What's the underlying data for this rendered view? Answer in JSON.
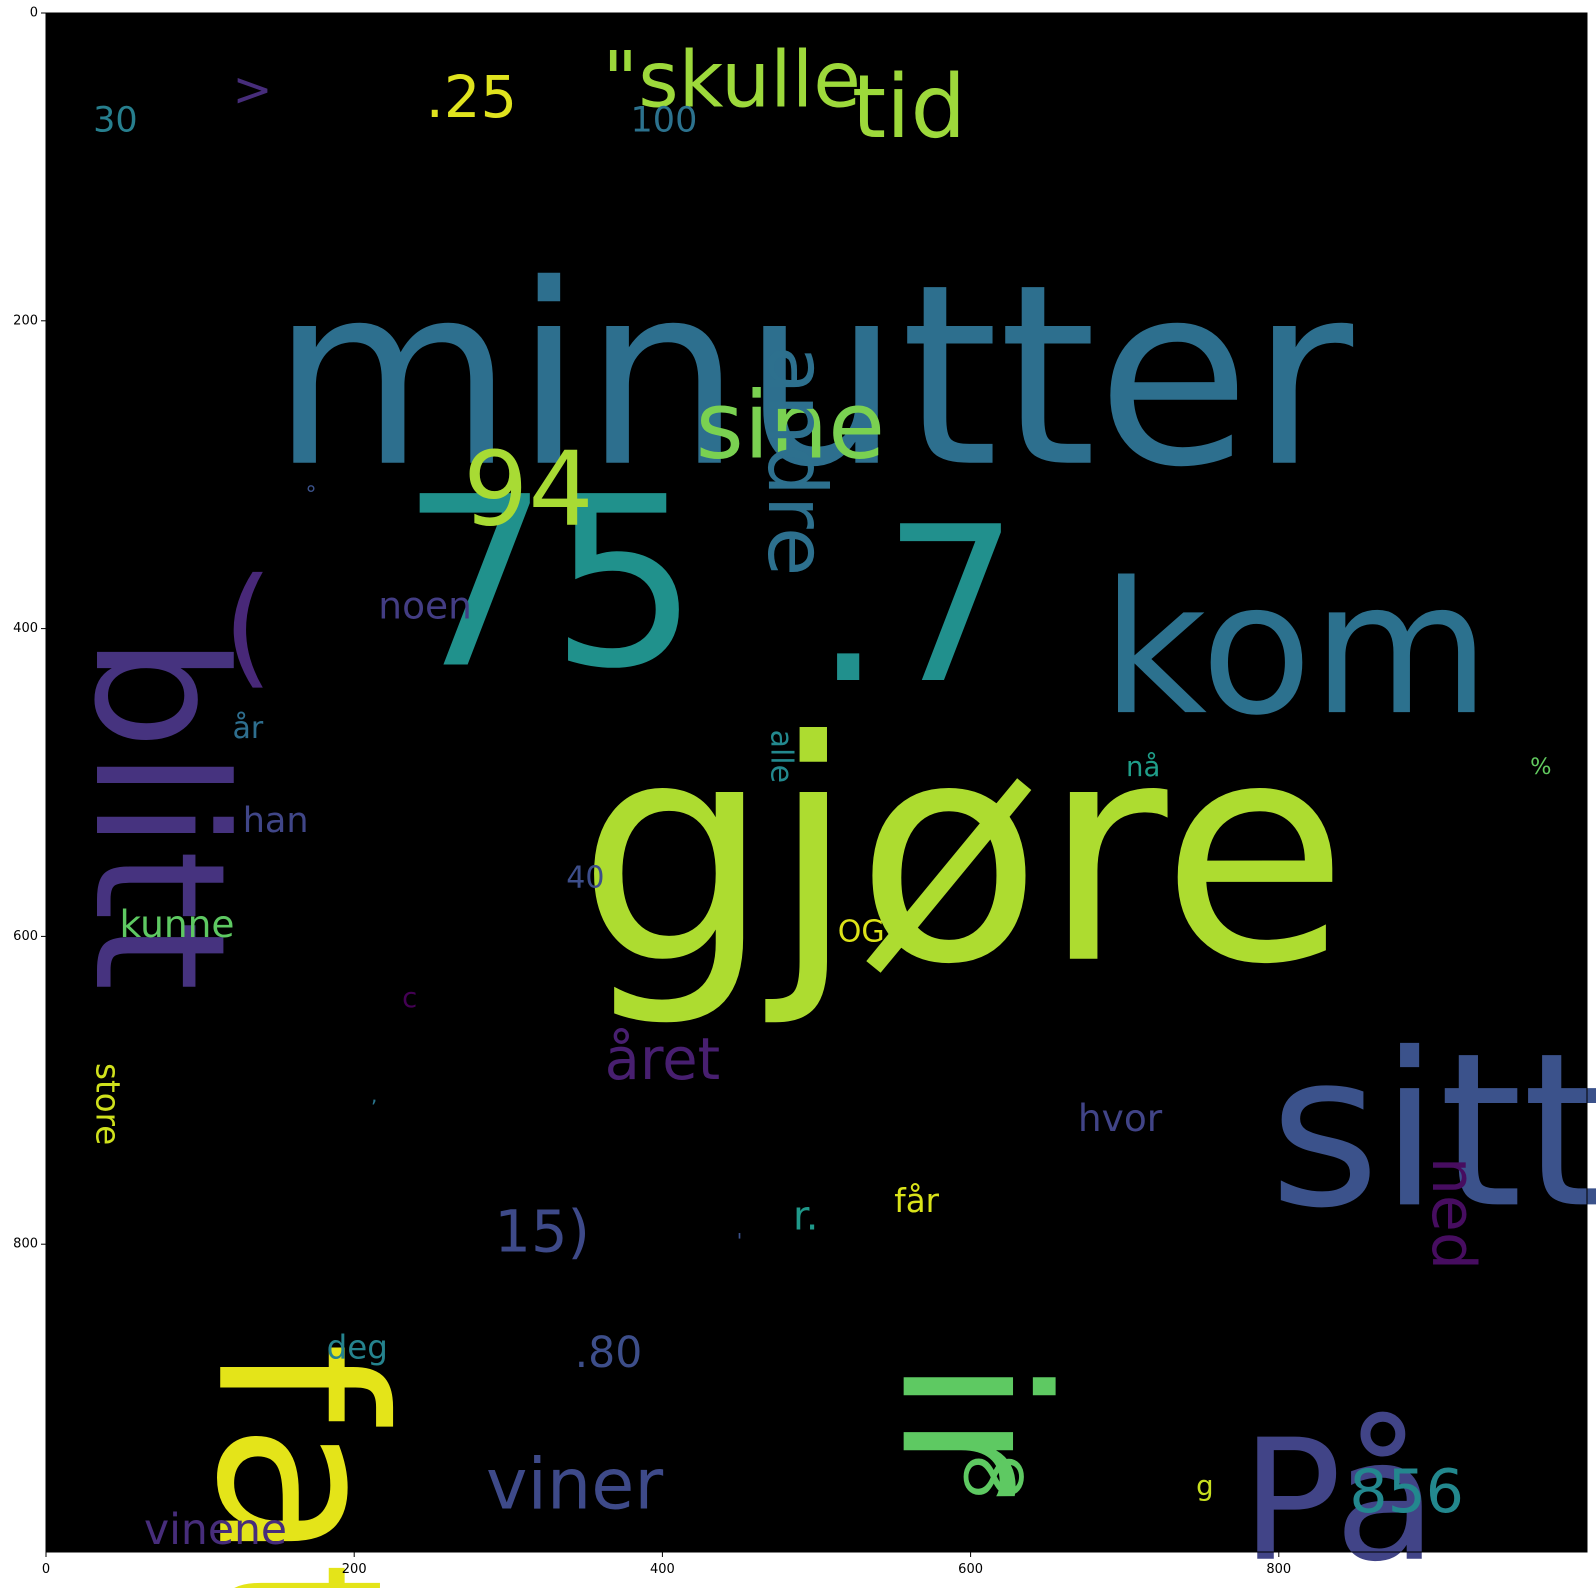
{
  "chart_data": {
    "type": "wordcloud",
    "background": "#000000",
    "xlim": [
      0,
      1000
    ],
    "ylim": [
      1000,
      0
    ],
    "xticks": [
      0,
      200,
      400,
      600,
      800
    ],
    "yticks": [
      0,
      200,
      400,
      600,
      800
    ],
    "words": [
      {
        "text": "minutter",
        "x": 497,
        "y": 236,
        "size": 1.0,
        "color": "#2d6f8e",
        "rotate": false
      },
      {
        "text": "gjøre",
        "x": 595,
        "y": 546,
        "size": 1.22,
        "color": "#addc30",
        "rotate": false
      },
      {
        "text": "75",
        "x": 327,
        "y": 371,
        "size": 0.94,
        "color": "#20918c",
        "rotate": false
      },
      {
        "text": ".7",
        "x": 565,
        "y": 385,
        "size": 0.86,
        "color": "#21908d",
        "rotate": false
      },
      {
        "text": "kom",
        "x": 811,
        "y": 414,
        "size": 0.73,
        "color": "#2c718e",
        "rotate": false
      },
      {
        "text": "sitt",
        "x": 903,
        "y": 727,
        "size": 0.85,
        "color": "#3b528b",
        "rotate": false
      },
      {
        "text": "fat",
        "x": 164,
        "y": 964,
        "size": 0.91,
        "color": "#e4e419",
        "rotate": true
      },
      {
        "text": "ir",
        "x": 601,
        "y": 919,
        "size": 0.8,
        "color": "#5ec962",
        "rotate": true
      },
      {
        "text": "På",
        "x": 839,
        "y": 967,
        "size": 0.67,
        "color": "#414487",
        "rotate": false
      },
      {
        "text": "blitt",
        "x": 73,
        "y": 520,
        "size": 0.72,
        "color": "#46337f",
        "rotate": true
      },
      {
        "text": "(",
        "x": 131,
        "y": 398,
        "size": 0.52,
        "color": "#482878",
        "rotate": false
      },
      {
        "text": "94",
        "x": 313,
        "y": 310,
        "size": 0.41,
        "color": "#a8db34",
        "rotate": false
      },
      {
        "text": "sine",
        "x": 483,
        "y": 268,
        "size": 0.37,
        "color": "#7ad151",
        "rotate": false
      },
      {
        "text": "andre",
        "x": 487,
        "y": 291,
        "size": 0.32,
        "color": "#2d708e",
        "rotate": true
      },
      {
        "text": "\"skulle",
        "x": 445,
        "y": 44,
        "size": 0.31,
        "color": "#9dd93b",
        "rotate": false
      },
      {
        "text": "tid",
        "x": 560,
        "y": 61,
        "size": 0.35,
        "color": "#9dd93b",
        "rotate": false
      },
      {
        "text": "",
        "x": 987,
        "y": 62,
        "size": 0.25,
        "color": "#440154",
        "rotate": false
      },
      {
        "text": ">",
        "x": 134,
        "y": 50,
        "size": 0.19,
        "color": "#472d7b",
        "rotate": false
      },
      {
        "text": ".25",
        "x": 276,
        "y": 55,
        "size": 0.23,
        "color": "#e0e31e",
        "rotate": false
      },
      {
        "text": "30",
        "x": 45,
        "y": 70,
        "size": 0.14,
        "color": "#277f8e",
        "rotate": false
      },
      {
        "text": "100",
        "x": 401,
        "y": 70,
        "size": 0.14,
        "color": "#2c728e",
        "rotate": false
      },
      {
        "text": "°",
        "x": 172,
        "y": 313,
        "size": 0.09,
        "color": "#3b528b",
        "rotate": false
      },
      {
        "text": "noen",
        "x": 246,
        "y": 385,
        "size": 0.15,
        "color": "#433d84",
        "rotate": false
      },
      {
        "text": "år",
        "x": 131,
        "y": 465,
        "size": 0.12,
        "color": "#2e6e8e",
        "rotate": false
      },
      {
        "text": "han",
        "x": 149,
        "y": 525,
        "size": 0.14,
        "color": "#404688",
        "rotate": false
      },
      {
        "text": "alle",
        "x": 477,
        "y": 483,
        "size": 0.12,
        "color": "#23898e",
        "rotate": true
      },
      {
        "text": "nå",
        "x": 712,
        "y": 490,
        "size": 0.11,
        "color": "#1f9e89",
        "rotate": false
      },
      {
        "text": "%",
        "x": 970,
        "y": 490,
        "size": 0.09,
        "color": "#62cb5f",
        "rotate": false
      },
      {
        "text": "40",
        "x": 350,
        "y": 562,
        "size": 0.12,
        "color": "#3d4e8a",
        "rotate": false
      },
      {
        "text": "kunne",
        "x": 85,
        "y": 592,
        "size": 0.15,
        "color": "#5ec962",
        "rotate": false
      },
      {
        "text": "OG",
        "x": 529,
        "y": 597,
        "size": 0.12,
        "color": "#dde318",
        "rotate": false
      },
      {
        "text": "c",
        "x": 236,
        "y": 640,
        "size": 0.11,
        "color": "#440154",
        "rotate": false
      },
      {
        "text": "året",
        "x": 400,
        "y": 680,
        "size": 0.23,
        "color": "#481f70",
        "rotate": false
      },
      {
        "text": "store",
        "x": 40,
        "y": 709,
        "size": 0.13,
        "color": "#d0e11c",
        "rotate": true
      },
      {
        "text": ",",
        "x": 213,
        "y": 703,
        "size": 0.08,
        "color": "#2a768e",
        "rotate": false
      },
      {
        "text": "hvor",
        "x": 697,
        "y": 718,
        "size": 0.15,
        "color": "#414487",
        "rotate": false
      },
      {
        "text": "ned",
        "x": 913,
        "y": 780,
        "size": 0.24,
        "color": "#470d60",
        "rotate": true
      },
      {
        "text": "15)",
        "x": 322,
        "y": 792,
        "size": 0.23,
        "color": "#3e4a89",
        "rotate": false
      },
      {
        "text": "r.",
        "x": 493,
        "y": 782,
        "size": 0.16,
        "color": "#1f998a",
        "rotate": false
      },
      {
        "text": "får",
        "x": 565,
        "y": 772,
        "size": 0.13,
        "color": "#dae319",
        "rotate": false
      },
      {
        "text": "'",
        "x": 450,
        "y": 798,
        "size": 0.08,
        "color": "#3b528b",
        "rotate": false
      },
      {
        "text": "deg",
        "x": 202,
        "y": 867,
        "size": 0.13,
        "color": "#25838e",
        "rotate": false
      },
      {
        "text": ".80",
        "x": 365,
        "y": 871,
        "size": 0.17,
        "color": "#3d4e8a",
        "rotate": false
      },
      {
        "text": "viner",
        "x": 343,
        "y": 956,
        "size": 0.28,
        "color": "#3e4a89",
        "rotate": false
      },
      {
        "text": "∞",
        "x": 615,
        "y": 948,
        "size": 0.39,
        "color": "#5ec962",
        "rotate": false
      },
      {
        "text": "g",
        "x": 752,
        "y": 957,
        "size": 0.11,
        "color": "#c8e020",
        "rotate": false
      },
      {
        "text": "856",
        "x": 883,
        "y": 961,
        "size": 0.24,
        "color": "#23888e",
        "rotate": false
      },
      {
        "text": "vinene",
        "x": 110,
        "y": 986,
        "size": 0.17,
        "color": "#472d7b",
        "rotate": false
      }
    ]
  }
}
